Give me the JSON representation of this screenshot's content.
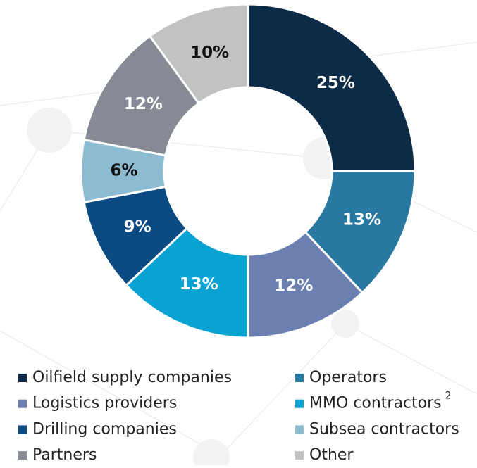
{
  "chart_data": {
    "type": "donut",
    "categories": [
      "Oilfield supply companies",
      "Operators",
      "Logistics providers",
      "MMO contractors",
      "Drilling companies",
      "Subsea contractors",
      "Partners",
      "Other"
    ],
    "category_notes": [
      null,
      null,
      null,
      "2",
      null,
      null,
      null,
      null
    ],
    "values": [
      25,
      13,
      12,
      13,
      9,
      6,
      12,
      10
    ],
    "value_labels": [
      "25%",
      "13%",
      "12%",
      "13%",
      "9%",
      "6%",
      "12%",
      "10%"
    ],
    "colors": [
      "#0b2b47",
      "#2878a0",
      "#6b80b0",
      "#0aa2d2",
      "#0b4a82",
      "#8cbbd2",
      "#858a95",
      "#c2c2c2"
    ]
  }
}
